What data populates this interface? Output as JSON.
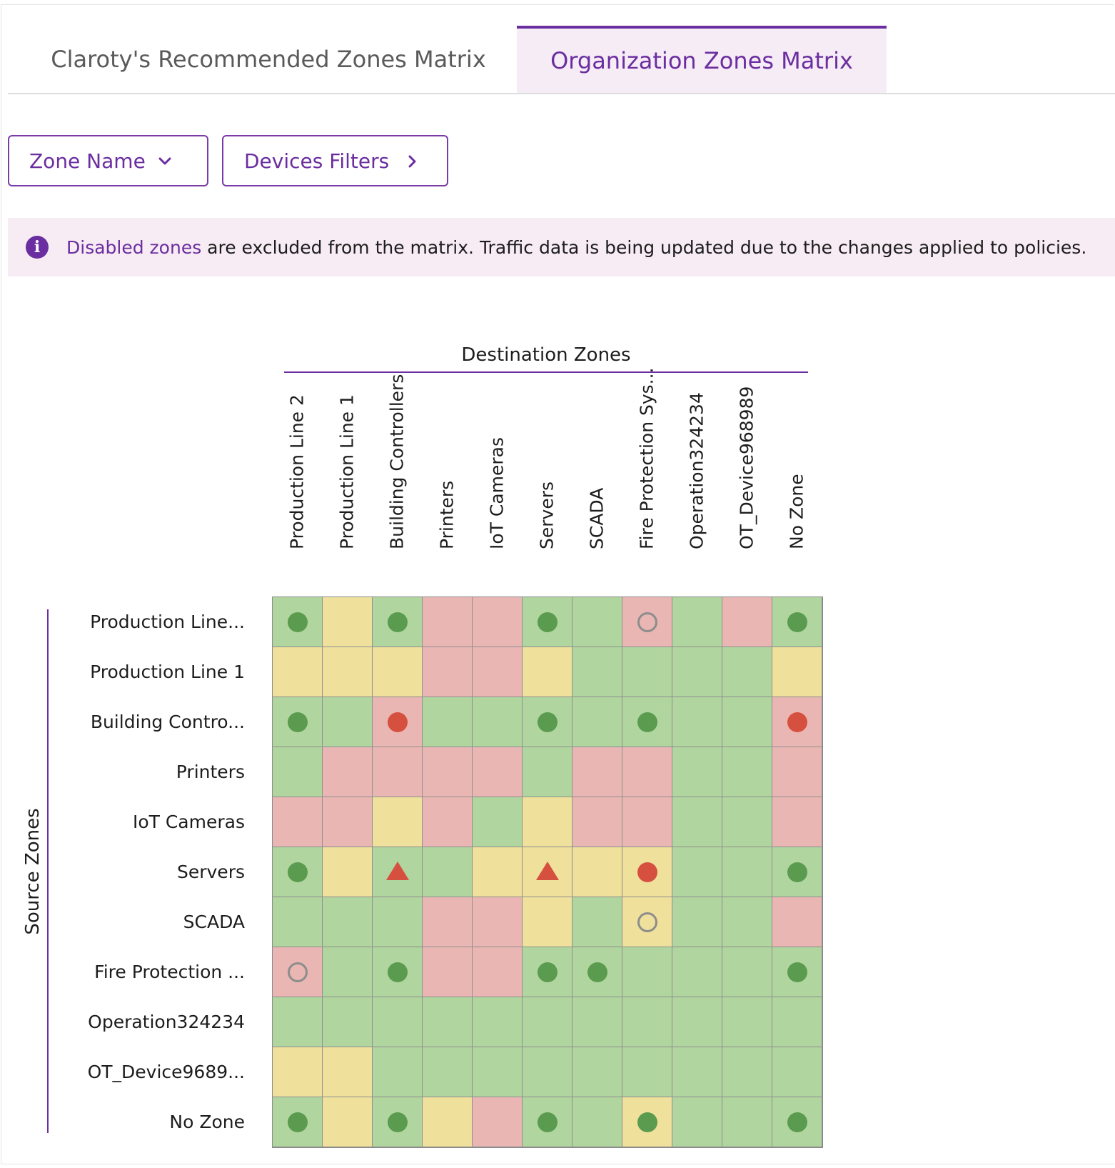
{
  "tabs": [
    {
      "label": "Claroty's Recommended Zones Matrix",
      "active": false
    },
    {
      "label": "Organization Zones Matrix",
      "active": true
    }
  ],
  "filters": {
    "zone_name_label": "Zone Name",
    "devices_filters_label": "Devices Filters"
  },
  "banner": {
    "link_text": "Disabled zones",
    "message": " are excluded from the matrix. Traffic data is being updated due to the changes applied to policies."
  },
  "matrix": {
    "destination_title": "Destination Zones",
    "source_title": "Source Zones",
    "columns": [
      "Production Line 2",
      "Production Line 1",
      "Building Controllers",
      "Printers",
      "IoT Cameras",
      "Servers",
      "SCADA",
      "Fire Protection Sys...",
      "Operation324234",
      "OT_Device968989",
      "No Zone"
    ],
    "rows": [
      "Production Line...",
      "Production Line 1",
      "Building Contro...",
      "Printers",
      "IoT Cameras",
      "Servers",
      "SCADA",
      "Fire Protection ...",
      "Operation324234",
      "OT_Device9689...",
      "No Zone"
    ],
    "colors": {
      "g": "#b0d59e",
      "y": "#efe09c",
      "r": "#e9b6b3"
    },
    "cells": [
      [
        "g",
        "y",
        "g",
        "r",
        "r",
        "g",
        "g",
        "r",
        "g",
        "r",
        "g"
      ],
      [
        "y",
        "y",
        "y",
        "r",
        "r",
        "y",
        "g",
        "g",
        "g",
        "g",
        "y"
      ],
      [
        "g",
        "g",
        "r",
        "g",
        "g",
        "g",
        "g",
        "g",
        "g",
        "g",
        "r"
      ],
      [
        "g",
        "r",
        "r",
        "r",
        "r",
        "g",
        "r",
        "r",
        "g",
        "g",
        "r"
      ],
      [
        "r",
        "r",
        "y",
        "r",
        "g",
        "y",
        "r",
        "r",
        "g",
        "g",
        "r"
      ],
      [
        "g",
        "y",
        "g",
        "g",
        "y",
        "y",
        "y",
        "y",
        "g",
        "g",
        "g"
      ],
      [
        "g",
        "g",
        "g",
        "r",
        "r",
        "y",
        "g",
        "y",
        "g",
        "g",
        "r"
      ],
      [
        "r",
        "g",
        "g",
        "r",
        "r",
        "g",
        "g",
        "g",
        "g",
        "g",
        "g"
      ],
      [
        "g",
        "g",
        "g",
        "g",
        "g",
        "g",
        "g",
        "g",
        "g",
        "g",
        "g"
      ],
      [
        "y",
        "y",
        "g",
        "g",
        "g",
        "g",
        "g",
        "g",
        "g",
        "g",
        "g"
      ],
      [
        "g",
        "y",
        "g",
        "y",
        "r",
        "g",
        "g",
        "y",
        "g",
        "g",
        "g"
      ]
    ],
    "markers": [
      [
        "dot-green",
        "",
        "dot-green",
        "",
        "",
        "dot-green",
        "",
        "ring",
        "",
        "",
        "dot-green"
      ],
      [
        "",
        "",
        "",
        "",
        "",
        "",
        "",
        "",
        "",
        "",
        ""
      ],
      [
        "dot-green",
        "",
        "dot-red",
        "",
        "",
        "dot-green",
        "",
        "dot-green",
        "",
        "",
        "dot-red"
      ],
      [
        "",
        "",
        "",
        "",
        "",
        "",
        "",
        "",
        "",
        "",
        ""
      ],
      [
        "",
        "",
        "",
        "",
        "",
        "",
        "",
        "",
        "",
        "",
        ""
      ],
      [
        "dot-green",
        "",
        "triangle-red",
        "",
        "",
        "triangle-red",
        "",
        "dot-red",
        "",
        "",
        "dot-green"
      ],
      [
        "",
        "",
        "",
        "",
        "",
        "",
        "",
        "ring",
        "",
        "",
        ""
      ],
      [
        "ring",
        "",
        "dot-green",
        "",
        "",
        "dot-green",
        "dot-green",
        "",
        "",
        "",
        "dot-green"
      ],
      [
        "",
        "",
        "",
        "",
        "",
        "",
        "",
        "",
        "",
        "",
        ""
      ],
      [
        "",
        "",
        "",
        "",
        "",
        "",
        "",
        "",
        "",
        "",
        ""
      ],
      [
        "dot-green",
        "",
        "dot-green",
        "",
        "",
        "dot-green",
        "",
        "dot-green",
        "",
        "",
        "dot-green"
      ]
    ]
  }
}
